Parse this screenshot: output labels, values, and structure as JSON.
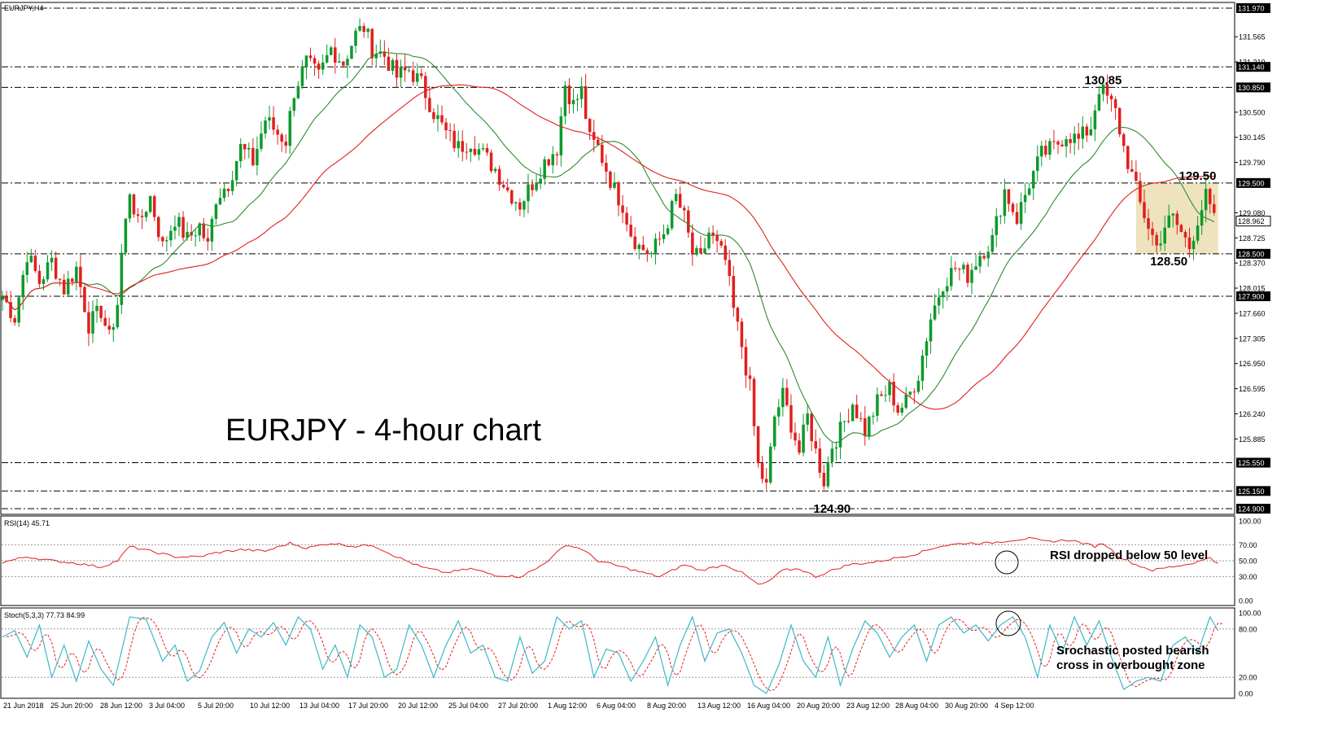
{
  "header": {
    "symbol_label": "EURJPY,H4"
  },
  "chart_data": [
    {
      "type": "candlestick",
      "panel": "price",
      "title": "EURJPY - 4-hour chart",
      "x_labels": [
        "21 Jun 2018",
        "25 Jun 20:00",
        "28 Jun 12:00",
        "3 Jul 04:00",
        "5 Jul 20:00",
        "10 Jul 12:00",
        "13 Jul 04:00",
        "17 Jul 20:00",
        "20 Jul 12:00",
        "25 Jul 04:00",
        "27 Jul 20:00",
        "1 Aug 12:00",
        "6 Aug 04:00",
        "8 Aug 20:00",
        "13 Aug 12:00",
        "16 Aug 04:00",
        "20 Aug 20:00",
        "23 Aug 12:00",
        "28 Aug 04:00",
        "30 Aug 20:00",
        "4 Sep 12:00"
      ],
      "y_ticks": [
        131.565,
        131.21,
        130.5,
        130.145,
        129.79,
        129.08,
        128.725,
        128.37,
        128.015,
        127.66,
        127.305,
        126.95,
        126.595,
        126.24,
        125.885
      ],
      "levels": [
        131.97,
        131.14,
        130.85,
        129.5,
        128.5,
        127.9,
        125.55,
        125.15,
        124.9
      ],
      "current_price": 128.962,
      "ylim": [
        124.82,
        132.05
      ],
      "close_path": [
        [
          0,
          127.9
        ],
        [
          3,
          127.6
        ],
        [
          6,
          128.5
        ],
        [
          9,
          128.1
        ],
        [
          12,
          128.4
        ],
        [
          15,
          128.0
        ],
        [
          18,
          128.3
        ],
        [
          21,
          127.5
        ],
        [
          24,
          127.7
        ],
        [
          26,
          127.3
        ],
        [
          28,
          127.8
        ],
        [
          29,
          128.5
        ],
        [
          31,
          129.4
        ],
        [
          33,
          128.9
        ],
        [
          36,
          129.3
        ],
        [
          39,
          128.6
        ],
        [
          42,
          129.0
        ],
        [
          45,
          128.7
        ],
        [
          48,
          128.9
        ],
        [
          50,
          128.6
        ],
        [
          52,
          129.3
        ],
        [
          55,
          129.5
        ],
        [
          58,
          130.0
        ],
        [
          61,
          129.8
        ],
        [
          64,
          130.4
        ],
        [
          67,
          130.2
        ],
        [
          69,
          130.1
        ],
        [
          71,
          130.8
        ],
        [
          74,
          131.2
        ],
        [
          77,
          131.0
        ],
        [
          80,
          131.4
        ],
        [
          83,
          131.2
        ],
        [
          86,
          131.6
        ],
        [
          88,
          131.7
        ],
        [
          90,
          131.4
        ],
        [
          93,
          131.3
        ],
        [
          96,
          131.0
        ],
        [
          99,
          131.1
        ],
        [
          102,
          130.9
        ],
        [
          105,
          130.5
        ],
        [
          108,
          130.2
        ],
        [
          111,
          130.0
        ],
        [
          114,
          130.1
        ],
        [
          117,
          129.9
        ],
        [
          120,
          129.7
        ],
        [
          123,
          129.4
        ],
        [
          126,
          129.2
        ],
        [
          129,
          129.5
        ],
        [
          132,
          129.8
        ],
        [
          135,
          130.0
        ],
        [
          137,
          130.9
        ],
        [
          139,
          130.6
        ],
        [
          141,
          130.8
        ],
        [
          143,
          130.1
        ],
        [
          145,
          130.0
        ],
        [
          147,
          129.7
        ],
        [
          149,
          129.4
        ],
        [
          151,
          129.2
        ],
        [
          153,
          128.8
        ],
        [
          155,
          128.6
        ],
        [
          158,
          128.5
        ],
        [
          161,
          128.8
        ],
        [
          164,
          129.3
        ],
        [
          166,
          129.0
        ],
        [
          168,
          128.5
        ],
        [
          170,
          128.4
        ],
        [
          172,
          128.8
        ],
        [
          174,
          128.6
        ],
        [
          176,
          128.4
        ],
        [
          178,
          127.7
        ],
        [
          180,
          127.2
        ],
        [
          182,
          126.6
        ],
        [
          184,
          125.5
        ],
        [
          186,
          125.2
        ],
        [
          188,
          126.2
        ],
        [
          190,
          126.5
        ],
        [
          192,
          126.1
        ],
        [
          194,
          125.7
        ],
        [
          196,
          126.2
        ],
        [
          198,
          125.7
        ],
        [
          200,
          125.3
        ],
        [
          202,
          125.8
        ],
        [
          204,
          126.0
        ],
        [
          207,
          126.4
        ],
        [
          210,
          126.0
        ],
        [
          213,
          126.4
        ],
        [
          216,
          126.6
        ],
        [
          218,
          126.3
        ],
        [
          220,
          126.4
        ],
        [
          223,
          126.8
        ],
        [
          226,
          127.6
        ],
        [
          229,
          128.1
        ],
        [
          232,
          128.3
        ],
        [
          235,
          128.2
        ],
        [
          238,
          128.5
        ],
        [
          241,
          128.7
        ],
        [
          244,
          129.4
        ],
        [
          247,
          129.0
        ],
        [
          250,
          129.5
        ],
        [
          253,
          129.9
        ],
        [
          256,
          130.0
        ],
        [
          259,
          130.2
        ],
        [
          262,
          130.1
        ],
        [
          265,
          130.3
        ],
        [
          267,
          130.85
        ],
        [
          269,
          130.7
        ],
        [
          271,
          130.5
        ],
        [
          273,
          130.0
        ],
        [
          275,
          129.6
        ],
        [
          277,
          129.2
        ],
        [
          279,
          128.9
        ],
        [
          281,
          128.6
        ],
        [
          283,
          128.9
        ],
        [
          285,
          129.0
        ],
        [
          287,
          128.8
        ],
        [
          289,
          128.6
        ],
        [
          291,
          129.0
        ],
        [
          293,
          129.3
        ],
        [
          295,
          128.96
        ]
      ],
      "series": [
        {
          "name": "",
          "color": "#2e8b2e",
          "ma_period": 20
        },
        {
          "name": "",
          "color": "#e0201e",
          "ma_period": 50
        }
      ],
      "annotations": [
        {
          "text": "130.85",
          "x": 267,
          "y": 130.85
        },
        {
          "text": "129.50",
          "x": 290,
          "y": 129.5
        },
        {
          "text": "128.50",
          "x": 283,
          "y": 128.5
        },
        {
          "text": "124.90",
          "x": 201,
          "y": 124.9
        }
      ],
      "highlight_box": {
        "x0": 276,
        "x1": 296,
        "y0": 128.5,
        "y1": 129.5,
        "color": "#e8d9a8"
      }
    },
    {
      "type": "line",
      "panel": "rsi",
      "label": "RSI(14) 45.71",
      "y_ticks": [
        100.0,
        70.0,
        50.0,
        30.0,
        0.0
      ],
      "ylim": [
        0,
        100
      ],
      "color": "#e0201e",
      "path": [
        [
          0,
          48
        ],
        [
          6,
          55
        ],
        [
          12,
          50
        ],
        [
          18,
          47
        ],
        [
          24,
          42
        ],
        [
          28,
          50
        ],
        [
          31,
          68
        ],
        [
          36,
          62
        ],
        [
          42,
          55
        ],
        [
          48,
          55
        ],
        [
          52,
          60
        ],
        [
          58,
          64
        ],
        [
          64,
          62
        ],
        [
          70,
          72
        ],
        [
          74,
          66
        ],
        [
          80,
          72
        ],
        [
          86,
          68
        ],
        [
          90,
          70
        ],
        [
          96,
          55
        ],
        [
          102,
          42
        ],
        [
          108,
          35
        ],
        [
          114,
          40
        ],
        [
          120,
          32
        ],
        [
          126,
          30
        ],
        [
          130,
          40
        ],
        [
          134,
          55
        ],
        [
          137,
          70
        ],
        [
          141,
          65
        ],
        [
          145,
          50
        ],
        [
          151,
          42
        ],
        [
          156,
          35
        ],
        [
          160,
          30
        ],
        [
          166,
          45
        ],
        [
          170,
          38
        ],
        [
          176,
          45
        ],
        [
          180,
          35
        ],
        [
          184,
          20
        ],
        [
          186,
          22
        ],
        [
          190,
          38
        ],
        [
          194,
          40
        ],
        [
          198,
          30
        ],
        [
          202,
          38
        ],
        [
          206,
          45
        ],
        [
          212,
          48
        ],
        [
          216,
          52
        ],
        [
          222,
          58
        ],
        [
          228,
          68
        ],
        [
          234,
          72
        ],
        [
          240,
          72
        ],
        [
          246,
          76
        ],
        [
          250,
          78
        ],
        [
          254,
          74
        ],
        [
          260,
          76
        ],
        [
          266,
          68
        ],
        [
          268,
          72
        ],
        [
          272,
          55
        ],
        [
          276,
          45
        ],
        [
          280,
          38
        ],
        [
          284,
          42
        ],
        [
          288,
          45
        ],
        [
          292,
          50
        ],
        [
          294,
          55
        ],
        [
          296,
          45.71
        ]
      ],
      "annotation": "RSI dropped below 50 level"
    },
    {
      "type": "line",
      "panel": "stochastic",
      "label": "Stoch(5,3,3) 77.73 84.99",
      "y_ticks": [
        100.0,
        80.0,
        20.0,
        0.0
      ],
      "ylim": [
        0,
        100
      ],
      "series": [
        {
          "name": "",
          "color": "#3cb8c6",
          "dashed": false
        },
        {
          "name": "",
          "color": "#e0201e",
          "dashed": true
        }
      ],
      "main_path": [
        [
          0,
          70
        ],
        [
          3,
          78
        ],
        [
          6,
          45
        ],
        [
          9,
          85
        ],
        [
          12,
          20
        ],
        [
          15,
          60
        ],
        [
          18,
          15
        ],
        [
          21,
          65
        ],
        [
          24,
          30
        ],
        [
          27,
          10
        ],
        [
          31,
          95
        ],
        [
          35,
          92
        ],
        [
          39,
          40
        ],
        [
          42,
          60
        ],
        [
          45,
          15
        ],
        [
          48,
          28
        ],
        [
          51,
          70
        ],
        [
          54,
          88
        ],
        [
          57,
          50
        ],
        [
          60,
          80
        ],
        [
          63,
          70
        ],
        [
          66,
          88
        ],
        [
          69,
          60
        ],
        [
          72,
          95
        ],
        [
          75,
          80
        ],
        [
          78,
          30
        ],
        [
          81,
          60
        ],
        [
          84,
          20
        ],
        [
          87,
          85
        ],
        [
          90,
          70
        ],
        [
          93,
          20
        ],
        [
          96,
          30
        ],
        [
          99,
          85
        ],
        [
          102,
          60
        ],
        [
          105,
          20
        ],
        [
          108,
          60
        ],
        [
          111,
          90
        ],
        [
          114,
          50
        ],
        [
          117,
          60
        ],
        [
          120,
          20
        ],
        [
          123,
          15
        ],
        [
          126,
          70
        ],
        [
          129,
          25
        ],
        [
          132,
          40
        ],
        [
          135,
          95
        ],
        [
          138,
          80
        ],
        [
          141,
          90
        ],
        [
          144,
          20
        ],
        [
          147,
          55
        ],
        [
          150,
          50
        ],
        [
          153,
          15
        ],
        [
          156,
          40
        ],
        [
          159,
          70
        ],
        [
          162,
          10
        ],
        [
          165,
          60
        ],
        [
          168,
          95
        ],
        [
          171,
          40
        ],
        [
          174,
          75
        ],
        [
          177,
          80
        ],
        [
          180,
          50
        ],
        [
          183,
          10
        ],
        [
          186,
          0
        ],
        [
          189,
          35
        ],
        [
          192,
          85
        ],
        [
          195,
          40
        ],
        [
          198,
          20
        ],
        [
          201,
          70
        ],
        [
          204,
          10
        ],
        [
          207,
          55
        ],
        [
          210,
          90
        ],
        [
          213,
          75
        ],
        [
          216,
          45
        ],
        [
          219,
          70
        ],
        [
          222,
          85
        ],
        [
          225,
          40
        ],
        [
          228,
          85
        ],
        [
          231,
          95
        ],
        [
          234,
          75
        ],
        [
          237,
          85
        ],
        [
          240,
          65
        ],
        [
          243,
          85
        ],
        [
          246,
          95
        ],
        [
          249,
          70
        ],
        [
          252,
          20
        ],
        [
          255,
          85
        ],
        [
          258,
          50
        ],
        [
          261,
          95
        ],
        [
          264,
          60
        ],
        [
          267,
          90
        ],
        [
          270,
          45
        ],
        [
          273,
          5
        ],
        [
          276,
          15
        ],
        [
          279,
          20
        ],
        [
          282,
          15
        ],
        [
          285,
          60
        ],
        [
          288,
          70
        ],
        [
          291,
          50
        ],
        [
          294,
          95
        ],
        [
          296,
          77.73
        ]
      ],
      "annotation_lines": [
        "Srochastic posted bearish",
        "cross in overbought zone"
      ]
    }
  ]
}
